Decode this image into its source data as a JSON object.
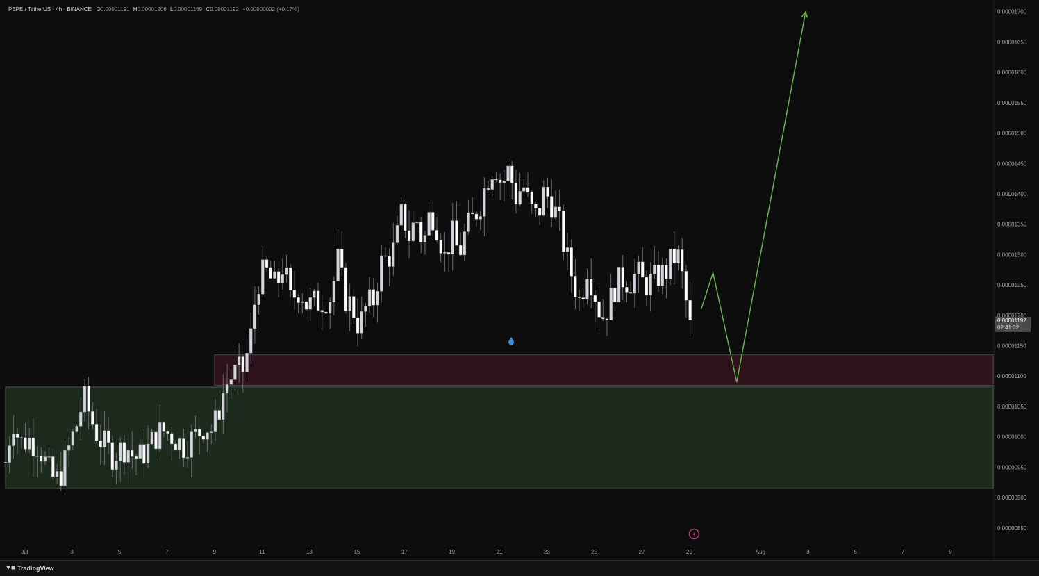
{
  "legend": {
    "symbol": "PEPE / TetherUS · 4h · BINANCE",
    "o_label": "O",
    "o_value": "0.00001191",
    "h_label": "H",
    "h_value": "0.00001206",
    "l_label": "L",
    "l_value": "0.00001169",
    "c_label": "C",
    "c_value": "0.00001192",
    "change": "+0.00000002 (+0.17%)"
  },
  "footer": {
    "brand": "TradingView",
    "logo_icon": "tradingview-logo-icon"
  },
  "price_badge": {
    "price": "0.00001192",
    "countdown": "02:41:32"
  },
  "colors": {
    "background": "#0d0d0d",
    "candle_up": "#d1d4dc",
    "candle_down": "#ffffff",
    "wick": "#6b6b6b",
    "red_zone": "#2d121c",
    "red_zone_border": "#55404a",
    "green_zone": "#1b2a1c",
    "green_zone_border": "#4a5a4a",
    "projection": "#6ab04c",
    "axis_text": "#a0a3aa"
  },
  "chart_data": {
    "type": "candlestick",
    "symbol": "PEPE / TetherUS",
    "interval": "4h",
    "exchange": "BINANCE",
    "y_axis_ticks": [
      "0.00001700",
      "0.00001650",
      "0.00001600",
      "0.00001550",
      "0.00001500",
      "0.00001450",
      "0.00001400",
      "0.00001350",
      "0.00001300",
      "0.00001250",
      "0.00001200",
      "0.00001150",
      "0.00001100",
      "0.00001050",
      "0.00001000",
      "0.00000950",
      "0.00000900",
      "0.00000850"
    ],
    "x_axis_ticks": [
      {
        "label": "Jul",
        "day": 1
      },
      {
        "label": "3",
        "day": 3
      },
      {
        "label": "5",
        "day": 5
      },
      {
        "label": "7",
        "day": 7
      },
      {
        "label": "9",
        "day": 9
      },
      {
        "label": "11",
        "day": 11
      },
      {
        "label": "13",
        "day": 13
      },
      {
        "label": "15",
        "day": 15
      },
      {
        "label": "17",
        "day": 17
      },
      {
        "label": "19",
        "day": 19
      },
      {
        "label": "21",
        "day": 21
      },
      {
        "label": "23",
        "day": 23
      },
      {
        "label": "25",
        "day": 25
      },
      {
        "label": "27",
        "day": 27
      },
      {
        "label": "29",
        "day": 29
      },
      {
        "label": "Aug",
        "day": 32
      },
      {
        "label": "3",
        "day": 34
      },
      {
        "label": "5",
        "day": 36
      },
      {
        "label": "7",
        "day": 38
      },
      {
        "label": "9",
        "day": 40
      }
    ],
    "ylim": [
      8.2e-06,
      1.71e-05
    ],
    "xlim_day": [
      0.2,
      41.8
    ],
    "last_price": 1.192e-05,
    "close_path": [
      [
        0.2,
        9.58e-06
      ],
      [
        0.5,
        1.03e-05
      ],
      [
        0.8,
        9.9e-06
      ],
      [
        1.2,
        9.95e-06
      ],
      [
        1.6,
        9.85e-06
      ],
      [
        2.0,
        9.45e-06
      ],
      [
        2.3,
        9.25e-06
      ],
      [
        2.6,
        9.45e-06
      ],
      [
        2.9,
        9.85e-06
      ],
      [
        3.2,
        1.02e-05
      ],
      [
        3.5,
        1.065e-05
      ],
      [
        3.8,
        1.03e-05
      ],
      [
        4.1,
        1e-05
      ],
      [
        4.4,
        9.85e-06
      ],
      [
        4.7,
        9.7e-06
      ],
      [
        5.0,
        9.78e-06
      ],
      [
        5.3,
        9.85e-06
      ],
      [
        5.6,
        9.65e-06
      ],
      [
        5.9,
        9.68e-06
      ],
      [
        6.2,
        9.8e-06
      ],
      [
        6.5,
        1e-05
      ],
      [
        6.8,
        1.01e-05
      ],
      [
        7.1,
        1.005e-05
      ],
      [
        7.4,
        9.95e-06
      ],
      [
        7.7,
        9.85e-06
      ],
      [
        8.0,
        9.95e-06
      ],
      [
        8.3,
        1.005e-05
      ],
      [
        8.6,
        1.02e-05
      ],
      [
        8.9,
        1.01e-05
      ],
      [
        9.1,
        1.03e-05
      ],
      [
        9.3,
        1.065e-05
      ],
      [
        9.6,
        1.095e-05
      ],
      [
        9.9,
        1.105e-05
      ],
      [
        10.2,
        1.11e-05
      ],
      [
        10.5,
        1.155e-05
      ],
      [
        10.7,
        1.22e-05
      ],
      [
        10.9,
        1.265e-05
      ],
      [
        11.2,
        1.27e-05
      ],
      [
        11.6,
        1.245e-05
      ],
      [
        11.9,
        1.285e-05
      ],
      [
        12.2,
        1.225e-05
      ],
      [
        12.6,
        1.245e-05
      ],
      [
        12.9,
        1.215e-05
      ],
      [
        13.2,
        1.22e-05
      ],
      [
        13.6,
        1.225e-05
      ],
      [
        13.9,
        1.23e-05
      ],
      [
        14.2,
        1.29e-05
      ],
      [
        14.5,
        1.23e-05
      ],
      [
        14.8,
        1.215e-05
      ],
      [
        15.1,
        1.18e-05
      ],
      [
        15.4,
        1.215e-05
      ],
      [
        15.7,
        1.225e-05
      ],
      [
        16.0,
        1.285e-05
      ],
      [
        16.3,
        1.295e-05
      ],
      [
        16.6,
        1.31e-05
      ],
      [
        16.9,
        1.37e-05
      ],
      [
        17.2,
        1.33e-05
      ],
      [
        17.5,
        1.36e-05
      ],
      [
        17.8,
        1.315e-05
      ],
      [
        18.1,
        1.375e-05
      ],
      [
        18.4,
        1.345e-05
      ],
      [
        18.7,
        1.295e-05
      ],
      [
        19.0,
        1.335e-05
      ],
      [
        19.3,
        1.3e-05
      ],
      [
        19.6,
        1.34e-05
      ],
      [
        19.9,
        1.36e-05
      ],
      [
        20.2,
        1.385e-05
      ],
      [
        20.5,
        1.425e-05
      ],
      [
        20.8,
        1.45e-05
      ],
      [
        21.1,
        1.415e-05
      ],
      [
        21.4,
        1.44e-05
      ],
      [
        21.7,
        1.395e-05
      ],
      [
        22.0,
        1.415e-05
      ],
      [
        22.3,
        1.375e-05
      ],
      [
        22.6,
        1.36e-05
      ],
      [
        22.9,
        1.405e-05
      ],
      [
        23.2,
        1.385e-05
      ],
      [
        23.5,
        1.355e-05
      ],
      [
        23.8,
        1.3e-05
      ],
      [
        24.1,
        1.26e-05
      ],
      [
        24.4,
        1.22e-05
      ],
      [
        24.7,
        1.28e-05
      ],
      [
        25.0,
        1.24e-05
      ],
      [
        25.3,
        1.195e-05
      ],
      [
        25.6,
        1.215e-05
      ],
      [
        25.9,
        1.25e-05
      ],
      [
        26.2,
        1.26e-05
      ],
      [
        26.5,
        1.255e-05
      ],
      [
        26.8,
        1.27e-05
      ],
      [
        27.1,
        1.25e-05
      ],
      [
        27.4,
        1.255e-05
      ],
      [
        27.7,
        1.265e-05
      ],
      [
        28.0,
        1.27e-05
      ],
      [
        28.3,
        1.295e-05
      ],
      [
        28.6,
        1.295e-05
      ],
      [
        28.8,
        1.23e-05
      ],
      [
        29.0,
        1.205e-05
      ],
      [
        29.1,
        1.192e-05
      ]
    ],
    "zones": [
      {
        "name": "supply-demand-red",
        "from_day": 9.0,
        "to_day": 41.8,
        "low": 1.085e-05,
        "high": 1.135e-05
      },
      {
        "name": "demand-green",
        "from_day": 0.2,
        "to_day": 41.8,
        "low": 9.15e-06,
        "high": 1.082e-05
      }
    ],
    "projection_path": [
      [
        29.5,
        1.21e-05
      ],
      [
        30.0,
        1.27e-05
      ],
      [
        31.0,
        1.09e-05
      ],
      [
        33.9,
        1.7e-05
      ]
    ],
    "markers": [
      {
        "type": "dividend-drop",
        "day": 21.5,
        "price": 1.158e-05
      },
      {
        "type": "flash-event",
        "day": 29.2,
        "price": 8.4e-06
      }
    ]
  }
}
